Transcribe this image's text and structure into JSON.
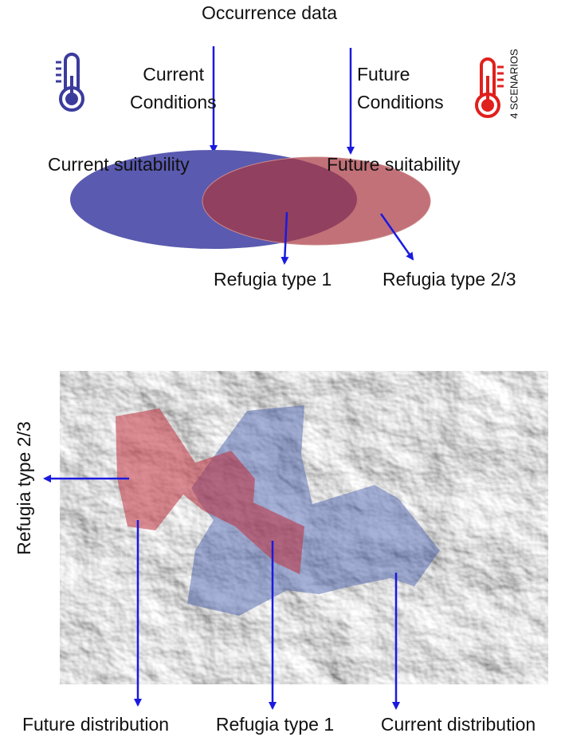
{
  "header": {
    "title": "Occurrence data"
  },
  "inputs": [
    {
      "lines": [
        "Current",
        "Conditions"
      ]
    },
    {
      "lines": [
        "Future",
        "Conditions"
      ],
      "note": "4 SCENARIOS"
    }
  ],
  "suitability": [
    "Current suitability",
    "Future suitability"
  ],
  "outcomes": [
    "Refugia type 1",
    "Refugia type 2/3"
  ],
  "map": {
    "side_label": "Refugia type 2/3",
    "bottom_labels": [
      "Future distribution",
      "Refugia type 1",
      "Current distribution"
    ]
  }
}
